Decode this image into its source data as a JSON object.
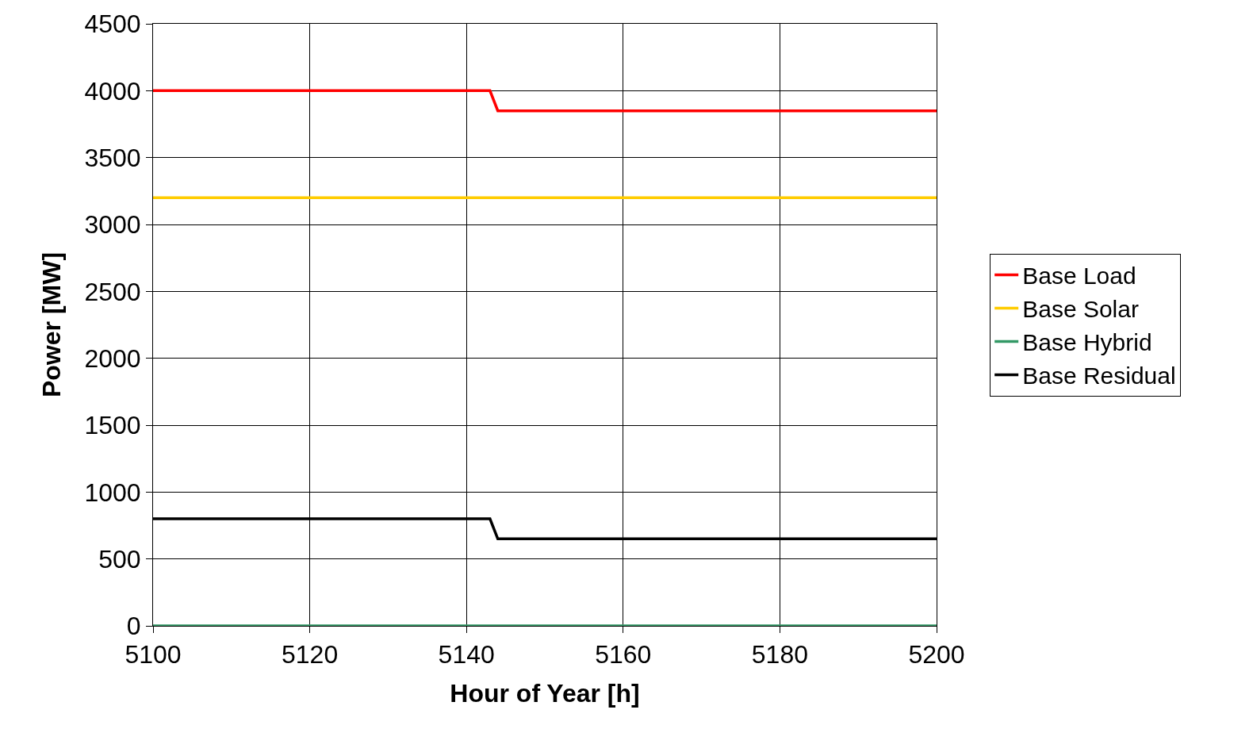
{
  "chart_data": {
    "type": "line",
    "xlabel": "Hour of Year [h]",
    "ylabel": "Power [MW]",
    "xlim": [
      5100,
      5200
    ],
    "xticks": [
      5100,
      5120,
      5140,
      5160,
      5180,
      5200
    ],
    "ylim": [
      0,
      4500
    ],
    "yticks": [
      0,
      500,
      1000,
      1500,
      2000,
      2500,
      3000,
      3500,
      4000,
      4500
    ],
    "grid": true,
    "legend": "right",
    "marker": "none",
    "line_style": "solid",
    "series": [
      {
        "name": "Base Load",
        "color": "#ff0000",
        "x": [
          5100,
          5143,
          5144,
          5200
        ],
        "values": [
          4000,
          4000,
          3850,
          3850
        ]
      },
      {
        "name": "Base Solar",
        "color": "#ffcc00",
        "x": [
          5100,
          5200
        ],
        "values": [
          3200,
          3200
        ]
      },
      {
        "name": "Base Hybrid",
        "color": "#339966",
        "x": [
          5100,
          5200
        ],
        "values": [
          0,
          0
        ]
      },
      {
        "name": "Base Residual",
        "color": "#000000",
        "x": [
          5100,
          5143,
          5144,
          5200
        ],
        "values": [
          800,
          800,
          650,
          650
        ]
      }
    ]
  }
}
